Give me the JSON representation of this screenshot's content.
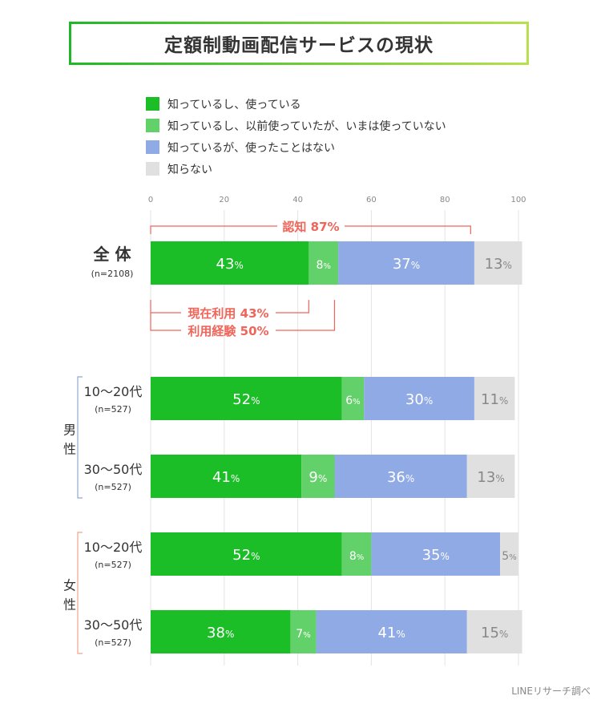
{
  "title": "定額制動画配信サービスの現状",
  "source": "LINEリサーチ調べ",
  "colors": {
    "s0": "#1cbe27",
    "s1": "#63d16a",
    "s2": "#8faae4",
    "s3": "#e0e0e0",
    "annotation": "#f0655a",
    "male_bracket": "#8fa8d4",
    "female_bracket": "#f0a48a"
  },
  "legend": [
    {
      "label": "知っているし、使っている",
      "color": "#1cbe27"
    },
    {
      "label": "知っているし、以前使っていたが、いまは使っていない",
      "color": "#63d16a"
    },
    {
      "label": "知っているが、使ったことはない",
      "color": "#8faae4"
    },
    {
      "label": "知らない",
      "color": "#e0e0e0"
    }
  ],
  "chart_data": {
    "type": "bar",
    "orientation": "horizontal",
    "stacked": true,
    "xlim": [
      0,
      100
    ],
    "ticks": [
      "0",
      "20",
      "40",
      "60",
      "80",
      "100"
    ],
    "tick_values": [
      0,
      20,
      40,
      60,
      80,
      100
    ],
    "unit": "%",
    "series": [
      {
        "name": "知っているし、使っている"
      },
      {
        "name": "知っているし、以前使っていたが、いまは使っていない"
      },
      {
        "name": "知っているが、使ったことはない"
      },
      {
        "name": "知らない"
      }
    ],
    "rows": [
      {
        "label": "全 体",
        "n": "(n=2108)",
        "values": [
          43,
          8,
          37,
          13
        ],
        "labels": [
          "43",
          "8",
          "37",
          "13"
        ]
      },
      {
        "label": "10〜20代",
        "n": "(n=527)",
        "group": "男性",
        "values": [
          52,
          6,
          30,
          11
        ],
        "labels": [
          "52",
          "6",
          "30",
          "11"
        ]
      },
      {
        "label": "30〜50代",
        "n": "(n=527)",
        "group": "男性",
        "values": [
          41,
          9,
          36,
          13
        ],
        "labels": [
          "41",
          "9",
          "36",
          "13"
        ]
      },
      {
        "label": "10〜20代",
        "n": "(n=527)",
        "group": "女性",
        "values": [
          52,
          8,
          35,
          5
        ],
        "labels": [
          "52",
          "8",
          "35",
          "5"
        ]
      },
      {
        "label": "30〜50代",
        "n": "(n=527)",
        "group": "女性",
        "values": [
          38,
          7,
          41,
          15
        ],
        "labels": [
          "38",
          "7",
          "41",
          "15"
        ]
      }
    ],
    "groups": [
      {
        "label": "男性",
        "chars": [
          "男",
          "性"
        ]
      },
      {
        "label": "女性",
        "chars": [
          "女",
          "性"
        ]
      }
    ],
    "annotations": [
      {
        "text": "認知 87%",
        "value": 87
      },
      {
        "text": "現在利用 43%",
        "value": 43
      },
      {
        "text": "利用経験 50%",
        "value": 50
      }
    ]
  }
}
